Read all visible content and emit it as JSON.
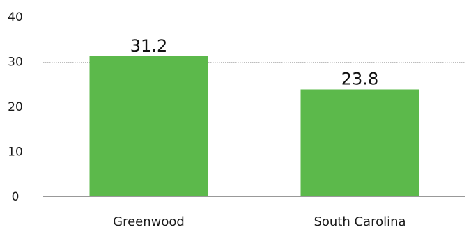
{
  "chart_data": {
    "type": "bar",
    "categories": [
      "Greenwood",
      "South Carolina"
    ],
    "values": [
      31.2,
      23.8
    ],
    "value_labels": [
      "31.2",
      "23.8"
    ],
    "y_ticks": [
      "0",
      "10",
      "20",
      "30",
      "40"
    ],
    "ylim": [
      0,
      40
    ],
    "grid": true,
    "bar_color": "#5cb94b",
    "grid_color": "#bdbdbd",
    "axis_color": "#999999"
  }
}
